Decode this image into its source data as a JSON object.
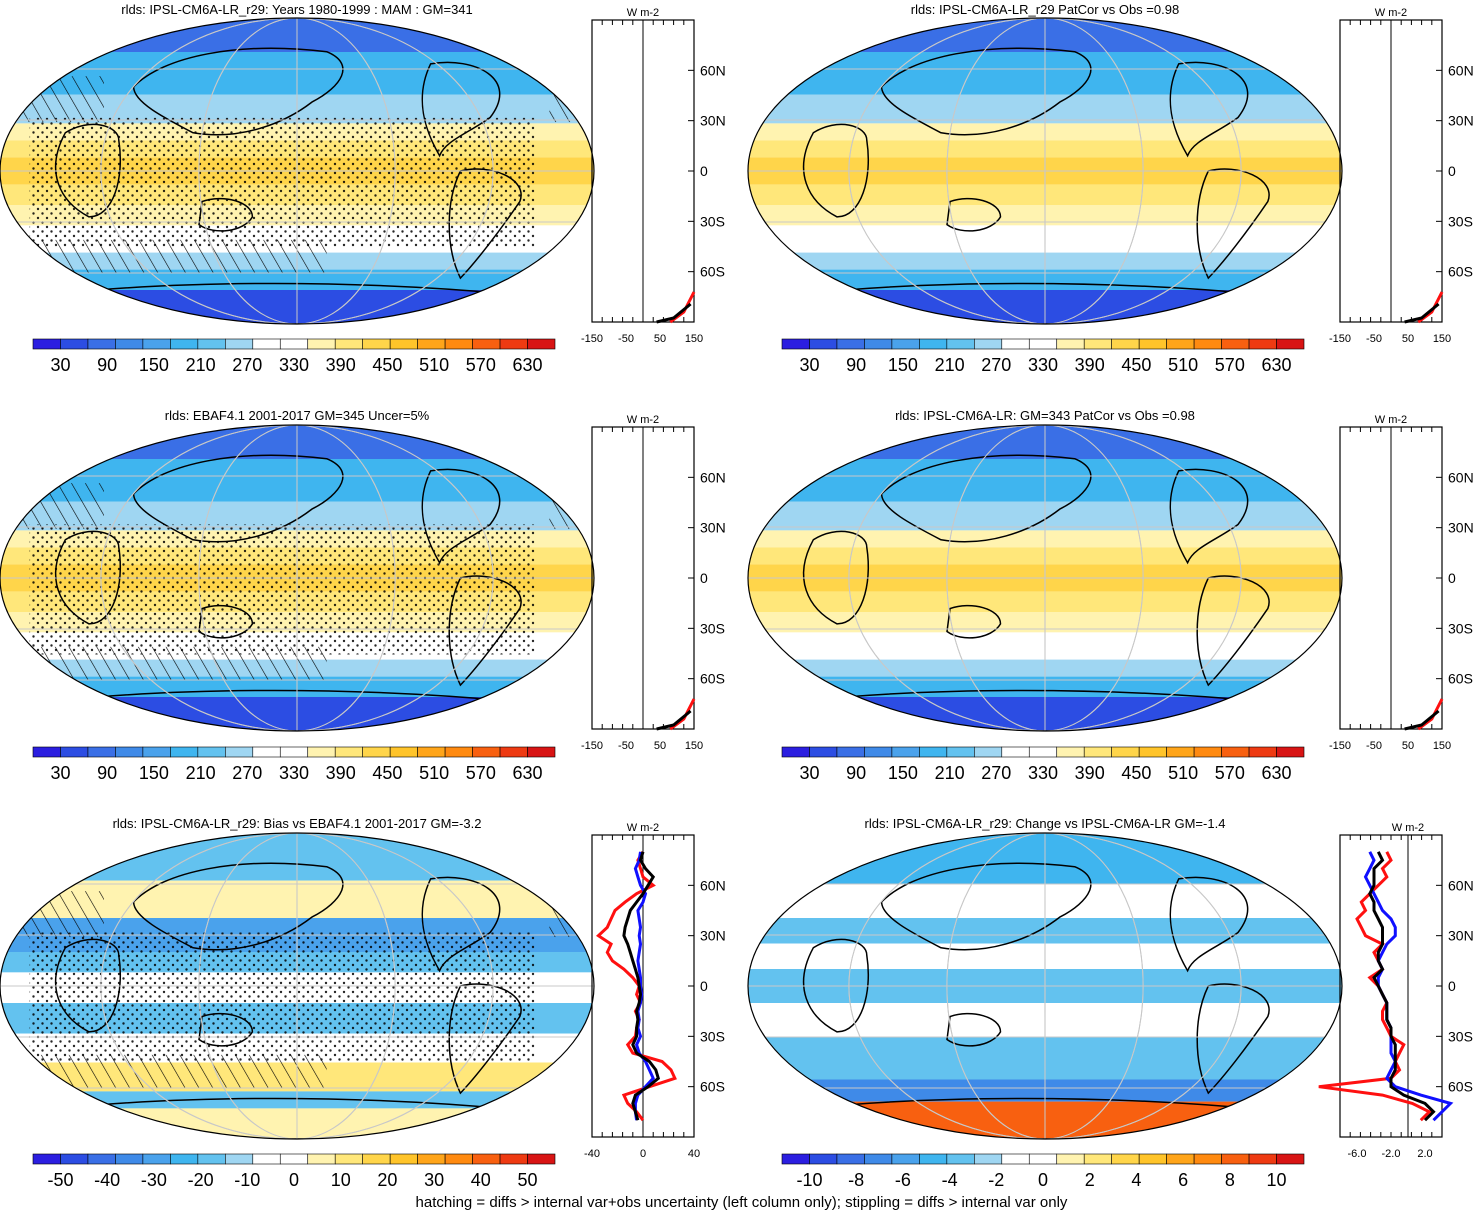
{
  "footnote": "hatching = diffs > internal var+obs uncertainty (left column only); stippling = diffs > internal var only",
  "colors": {
    "climatology_scale": [
      "#2b1ee0",
      "#2c4de3",
      "#3a6fe6",
      "#3f8ae8",
      "#4aa2ec",
      "#3fb5ef",
      "#63c2ef",
      "#9fd6f2",
      "#ffffff",
      "#ffffff",
      "#fff3b0",
      "#ffe77a",
      "#ffd54a",
      "#ffc42a",
      "#ffa51a",
      "#ff8a10",
      "#f86010",
      "#ee3a12",
      "#d81414"
    ],
    "difference_scale": [
      "#2b1ee0",
      "#2c4de3",
      "#3a6fe6",
      "#3f8ae8",
      "#4aa2ec",
      "#3fb5ef",
      "#63c2ef",
      "#9fd6f2",
      "#ffffff",
      "#ffffff",
      "#fff3b0",
      "#ffe77a",
      "#ffd54a",
      "#ffc42a",
      "#ffa51a",
      "#ff8a10",
      "#f86010",
      "#ee3a12",
      "#d81414"
    ],
    "profile_red": "#ff1010",
    "profile_blue": "#1010ff",
    "profile_black": "#000000"
  },
  "chart_data": [
    {
      "type": "heatmap",
      "title": "rlds: IPSL-CM6A-LR_r29: Years 1980-1999 : MAM : GM=341",
      "colorbar_labels": [
        "30",
        "90",
        "150",
        "210",
        "270",
        "330",
        "390",
        "450",
        "510",
        "570",
        "630"
      ],
      "field": "model_climatology",
      "hatching": true,
      "stippling": true,
      "zonal_mean_profile": {
        "unit": "W m-2",
        "x_ticks": [
          "-150",
          "-50",
          "50",
          "150"
        ],
        "y_ticks": [
          "60N",
          "30N",
          "0",
          "30S",
          "60S"
        ],
        "xlim": [
          -150,
          150
        ]
      }
    },
    {
      "type": "heatmap",
      "title": "rlds: IPSL-CM6A-LR_r29 PatCor vs Obs =0.98",
      "colorbar_labels": [
        "30",
        "90",
        "150",
        "210",
        "270",
        "330",
        "390",
        "450",
        "510",
        "570",
        "630"
      ],
      "field": "model_climatology",
      "hatching": false,
      "stippling": false,
      "zonal_mean_profile": {
        "unit": "W m-2",
        "x_ticks": [
          "-150",
          "-50",
          "50",
          "150"
        ],
        "y_ticks": [
          "60N",
          "30N",
          "0",
          "30S",
          "60S"
        ],
        "xlim": [
          -150,
          150
        ]
      }
    },
    {
      "type": "heatmap",
      "title": "rlds: EBAF4.1 2001-2017 GM=345 Uncer=5%",
      "colorbar_labels": [
        "30",
        "90",
        "150",
        "210",
        "270",
        "330",
        "390",
        "450",
        "510",
        "570",
        "630"
      ],
      "field": "observed_climatology",
      "hatching": true,
      "stippling": true,
      "zonal_mean_profile": {
        "unit": "W m-2",
        "x_ticks": [
          "-150",
          "-50",
          "50",
          "150"
        ],
        "y_ticks": [
          "60N",
          "30N",
          "0",
          "30S",
          "60S"
        ],
        "xlim": [
          -150,
          150
        ]
      }
    },
    {
      "type": "heatmap",
      "title": "rlds: IPSL-CM6A-LR: GM=343 PatCor vs Obs =0.98",
      "colorbar_labels": [
        "30",
        "90",
        "150",
        "210",
        "270",
        "330",
        "390",
        "450",
        "510",
        "570",
        "630"
      ],
      "field": "model_climatology",
      "hatching": false,
      "stippling": false,
      "zonal_mean_profile": {
        "unit": "W m-2",
        "x_ticks": [
          "-150",
          "-50",
          "50",
          "150"
        ],
        "y_ticks": [
          "60N",
          "30N",
          "0",
          "30S",
          "60S"
        ],
        "xlim": [
          -150,
          150
        ]
      }
    },
    {
      "type": "heatmap",
      "title": "rlds: IPSL-CM6A-LR_r29: Bias vs EBAF4.1 2001-2017 GM=-3.2",
      "colorbar_labels": [
        "-50",
        "-40",
        "-30",
        "-20",
        "-10",
        "0",
        "10",
        "20",
        "30",
        "40",
        "50"
      ],
      "field": "bias",
      "hatching": true,
      "stippling": true,
      "zonal_mean_profile": {
        "unit": "W m-2",
        "x_ticks": [
          "-40",
          "0",
          "40"
        ],
        "y_ticks": [
          "60N",
          "30N",
          "0",
          "30S",
          "60S"
        ],
        "xlim": [
          -40,
          40
        ],
        "series": [
          {
            "color": "red",
            "lat": [
              80,
              75,
              70,
              65,
              60,
              55,
              50,
              45,
              40,
              35,
              30,
              25,
              20,
              15,
              10,
              5,
              0,
              -5,
              -10,
              -15,
              -20,
              -25,
              -30,
              -35,
              -40,
              -45,
              -50,
              -55,
              -60,
              -65,
              -70,
              -75,
              -80
            ],
            "values": [
              0,
              -4,
              -2,
              0,
              8,
              -5,
              -14,
              -22,
              -25,
              -28,
              -35,
              -25,
              -28,
              -24,
              -15,
              -8,
              -3,
              -5,
              -2,
              -6,
              -3,
              -5,
              -6,
              -12,
              -8,
              15,
              22,
              25,
              5,
              -15,
              -12,
              -5,
              0
            ]
          },
          {
            "color": "blue",
            "lat": [
              80,
              75,
              70,
              65,
              60,
              55,
              50,
              45,
              40,
              35,
              30,
              25,
              20,
              15,
              10,
              5,
              0,
              -5,
              -10,
              -15,
              -20,
              -25,
              -30,
              -35,
              -40,
              -45,
              -50,
              -55,
              -60,
              -65,
              -70,
              -75,
              -80
            ],
            "values": [
              -2,
              -3,
              -6,
              -4,
              -2,
              2,
              0,
              -4,
              -3,
              -2,
              -3,
              -2,
              -3,
              -4,
              -3,
              -2,
              -2,
              -1,
              -2,
              -4,
              -3,
              -4,
              -2,
              -5,
              -3,
              2,
              5,
              8,
              2,
              -4,
              -6,
              -6,
              -5
            ]
          },
          {
            "color": "black",
            "lat": [
              80,
              75,
              70,
              65,
              60,
              55,
              50,
              45,
              40,
              35,
              30,
              25,
              20,
              15,
              10,
              5,
              0,
              -5,
              -10,
              -15,
              -20,
              -25,
              -30,
              -35,
              -40,
              -45,
              -50,
              -55,
              -60,
              -65,
              -70,
              -75,
              -80
            ],
            "values": [
              0,
              -2,
              2,
              8,
              4,
              0,
              -5,
              -10,
              -12,
              -14,
              -15,
              -12,
              -10,
              -8,
              -6,
              -4,
              -3,
              -2,
              -3,
              -5,
              -4,
              -5,
              -5,
              -8,
              -5,
              5,
              10,
              12,
              4,
              -6,
              -8,
              -6,
              -4
            ]
          }
        ]
      }
    },
    {
      "type": "heatmap",
      "title": "rlds: IPSL-CM6A-LR_r29: Change vs IPSL-CM6A-LR GM=-1.4",
      "colorbar_labels": [
        "-10",
        "-8",
        "-6",
        "-4",
        "-2",
        "0",
        "2",
        "4",
        "6",
        "8",
        "10"
      ],
      "field": "change",
      "hatching": false,
      "stippling": false,
      "zonal_mean_profile": {
        "unit": "W m-2",
        "x_ticks": [
          "-6.0",
          "-2.0",
          "2.0"
        ],
        "y_ticks": [
          "60N",
          "30N",
          "0",
          "30S",
          "60S"
        ],
        "xlim": [
          -8,
          4
        ],
        "series": [
          {
            "color": "red",
            "lat": [
              80,
              75,
              70,
              65,
              60,
              55,
              50,
              45,
              40,
              35,
              30,
              25,
              20,
              15,
              10,
              5,
              0,
              -5,
              -10,
              -15,
              -20,
              -25,
              -30,
              -35,
              -40,
              -45,
              -50,
              -55,
              -60,
              -65,
              -70,
              -75,
              -80
            ],
            "values": [
              -2.5,
              -2.0,
              -3.0,
              -2.5,
              -3.5,
              -4.5,
              -5.5,
              -5.0,
              -6.0,
              -5.5,
              -5.0,
              -3.0,
              -4.0,
              -3.5,
              -3.0,
              -4.5,
              -3.5,
              -3.0,
              -2.5,
              -3.0,
              -3.0,
              -2.5,
              -2.0,
              -0.5,
              -1.0,
              -1.5,
              -1.0,
              -2.0,
              -10.5,
              -3.0,
              0.5,
              2.5,
              1.5
            ]
          },
          {
            "color": "blue",
            "lat": [
              80,
              75,
              70,
              65,
              60,
              55,
              50,
              45,
              40,
              35,
              30,
              25,
              20,
              15,
              10,
              5,
              0,
              -5,
              -10,
              -15,
              -20,
              -25,
              -30,
              -35,
              -40,
              -45,
              -50,
              -55,
              -60,
              -65,
              -70,
              -75,
              -80
            ],
            "values": [
              -4.5,
              -4.0,
              -4.5,
              -5.0,
              -4.5,
              -4.0,
              -3.5,
              -3.0,
              -2.0,
              -1.5,
              -1.5,
              -2.5,
              -3.0,
              -3.5,
              -3.0,
              -3.5,
              -3.5,
              -3.0,
              -2.5,
              -2.5,
              -2.5,
              -2.0,
              -2.0,
              -2.0,
              -2.0,
              -1.5,
              -2.0,
              -2.5,
              -1.5,
              1.5,
              5.0,
              4.0,
              3.0
            ]
          },
          {
            "color": "black",
            "lat": [
              80,
              75,
              70,
              65,
              60,
              55,
              50,
              45,
              40,
              35,
              30,
              25,
              20,
              15,
              10,
              5,
              0,
              -5,
              -10,
              -15,
              -20,
              -25,
              -30,
              -35,
              -40,
              -45,
              -50,
              -55,
              -60,
              -65,
              -70,
              -75,
              -80
            ],
            "values": [
              -3.5,
              -3.0,
              -4.0,
              -4.0,
              -4.0,
              -4.5,
              -4.0,
              -4.0,
              -3.5,
              -3.0,
              -3.0,
              -3.0,
              -3.5,
              -3.5,
              -3.0,
              -4.0,
              -3.5,
              -3.0,
              -2.5,
              -2.5,
              -2.5,
              -2.0,
              -2.0,
              -1.5,
              -1.5,
              -1.5,
              -1.5,
              -2.0,
              -2.0,
              -0.5,
              2.0,
              3.0,
              2.0
            ]
          }
        ]
      }
    }
  ]
}
